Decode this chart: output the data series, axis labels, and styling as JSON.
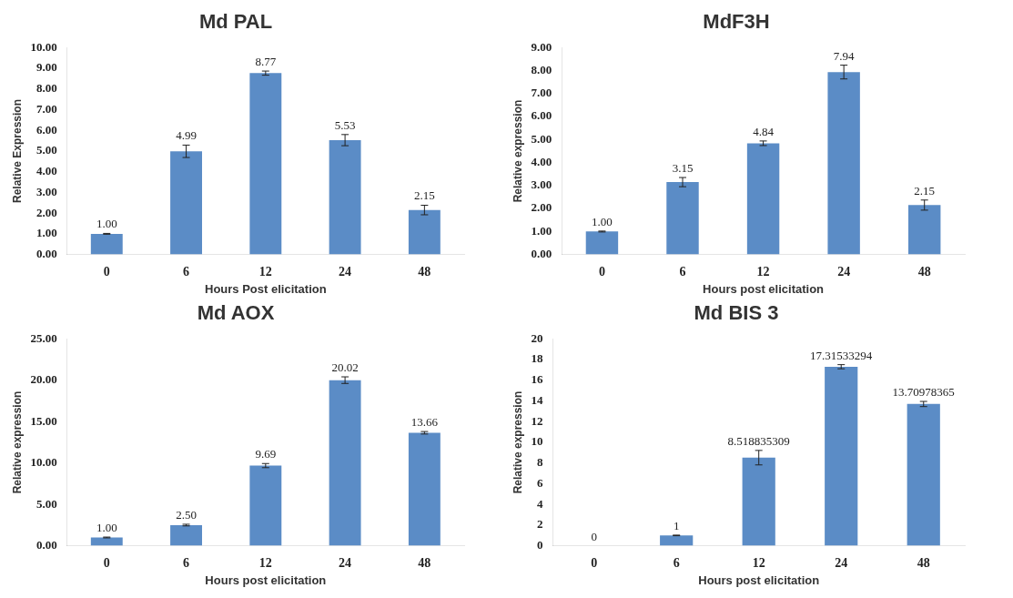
{
  "chart_data": [
    {
      "type": "bar",
      "title": "Md PAL",
      "xlabel": "Hours Post elicitation",
      "ylabel": "Relative Expression",
      "categories": [
        "0",
        "6",
        "12",
        "24",
        "48"
      ],
      "values": [
        1.0,
        4.99,
        8.77,
        5.53,
        2.15
      ],
      "errors": [
        0.02,
        0.3,
        0.1,
        0.27,
        0.23
      ],
      "value_labels": [
        "1.00",
        "4.99",
        "8.77",
        "5.53",
        "2.15"
      ],
      "color": "#5b8cc6",
      "ylim": [
        0,
        10
      ],
      "yticks": [
        {
          "value": 0,
          "label": "0.00"
        },
        {
          "value": 1,
          "label": "1.00"
        },
        {
          "value": 2,
          "label": "2.00"
        },
        {
          "value": 3,
          "label": "3.00"
        },
        {
          "value": 4,
          "label": "4.00"
        },
        {
          "value": 5,
          "label": "5.00"
        },
        {
          "value": 6,
          "label": "6.00"
        },
        {
          "value": 7,
          "label": "7.00"
        },
        {
          "value": 8,
          "label": "8.00"
        },
        {
          "value": 9,
          "label": "9.00"
        },
        {
          "value": 10,
          "label": "10.00"
        }
      ],
      "grid": false,
      "legend": false
    },
    {
      "type": "bar",
      "title": "MdF3H",
      "xlabel": "Hours post elicitation",
      "ylabel": "Relative expression",
      "categories": [
        "0",
        "6",
        "12",
        "24",
        "48"
      ],
      "values": [
        1.0,
        3.15,
        4.84,
        7.94,
        2.15
      ],
      "errors": [
        0.02,
        0.2,
        0.1,
        0.3,
        0.22
      ],
      "value_labels": [
        "1.00",
        "3.15",
        "4.84",
        "7.94",
        "2.15"
      ],
      "color": "#5b8cc6",
      "ylim": [
        0,
        9
      ],
      "yticks": [
        {
          "value": 0,
          "label": "0.00"
        },
        {
          "value": 1,
          "label": "1.00"
        },
        {
          "value": 2,
          "label": "2.00"
        },
        {
          "value": 3,
          "label": "3.00"
        },
        {
          "value": 4,
          "label": "4.00"
        },
        {
          "value": 5,
          "label": "5.00"
        },
        {
          "value": 6,
          "label": "6.00"
        },
        {
          "value": 7,
          "label": "7.00"
        },
        {
          "value": 8,
          "label": "8.00"
        },
        {
          "value": 9,
          "label": "9.00"
        }
      ],
      "grid": false,
      "legend": false
    },
    {
      "type": "bar",
      "title": "Md AOX",
      "xlabel": "Hours post elicitation",
      "ylabel": "Relative expression",
      "categories": [
        "0",
        "6",
        "12",
        "24",
        "48"
      ],
      "values": [
        1.0,
        2.5,
        9.69,
        20.02,
        13.66
      ],
      "errors": [
        0.05,
        0.1,
        0.25,
        0.4,
        0.15
      ],
      "value_labels": [
        "1.00",
        "2.50",
        "9.69",
        "20.02",
        "13.66"
      ],
      "color": "#5b8cc6",
      "ylim": [
        0,
        25
      ],
      "yticks": [
        {
          "value": 0,
          "label": "0.00"
        },
        {
          "value": 5,
          "label": "5.00"
        },
        {
          "value": 10,
          "label": "10.00"
        },
        {
          "value": 15,
          "label": "15.00"
        },
        {
          "value": 20,
          "label": "20.00"
        },
        {
          "value": 25,
          "label": "25.00"
        }
      ],
      "grid": false,
      "legend": false
    },
    {
      "type": "bar",
      "title": "Md BIS 3",
      "xlabel": "Hours post elicitation",
      "ylabel": "Relative expression",
      "categories": [
        "0",
        "6",
        "12",
        "24",
        "48"
      ],
      "values": [
        0,
        1,
        8.518835309,
        17.31533294,
        13.70978365
      ],
      "errors": [
        null,
        0.03,
        0.7,
        0.2,
        0.25
      ],
      "data_labels": true,
      "color": "#5b8cc6",
      "ylim": [
        0,
        20
      ],
      "yticks": [
        0,
        2,
        4,
        6,
        8,
        10,
        12,
        14,
        16,
        18,
        20
      ],
      "grid": false,
      "legend": false
    }
  ]
}
